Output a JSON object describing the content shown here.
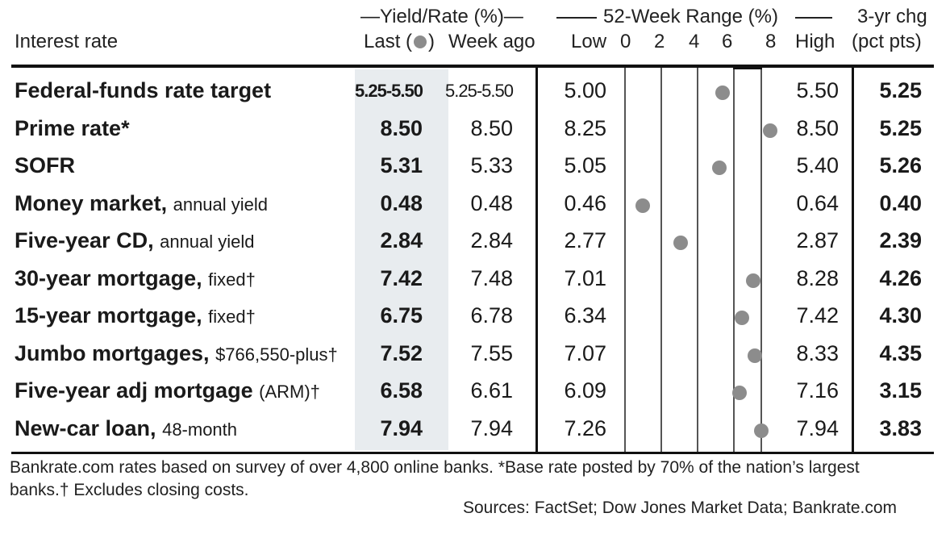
{
  "colors": {
    "dot": "#8c8c8c",
    "last_column_shade": "#e8ecef",
    "rule": "#111111"
  },
  "header": {
    "interest_rate": "Interest rate",
    "yield_group": "—Yield/Rate (%)—",
    "last": "Last",
    "paren_open": "(",
    "paren_close": ")",
    "week_ago": "Week ago",
    "range_group": "52-Week Range (%)",
    "low": "Low",
    "high": "High",
    "chg_line1": "3-yr chg",
    "chg_line2": "(pct pts)",
    "ticks": [
      "0",
      "2",
      "4",
      "6",
      "8"
    ]
  },
  "rows": [
    {
      "name": "Federal-funds rate target",
      "qual": "",
      "last": "5.25-5.50",
      "week_ago": "5.25-5.50",
      "low": "5.00",
      "high": "5.50",
      "chg": "5.25"
    },
    {
      "name": "Prime rate*",
      "qual": "",
      "last": "8.50",
      "week_ago": "8.50",
      "low": "8.25",
      "high": "8.50",
      "chg": "5.25"
    },
    {
      "name": "SOFR",
      "qual": "",
      "last": "5.31",
      "week_ago": "5.33",
      "low": "5.05",
      "high": "5.40",
      "chg": "5.26"
    },
    {
      "name": "Money market,",
      "qual": "annual yield",
      "last": "0.48",
      "week_ago": "0.48",
      "low": "0.46",
      "high": "0.64",
      "chg": "0.40"
    },
    {
      "name": "Five-year CD,",
      "qual": "annual yield",
      "last": "2.84",
      "week_ago": "2.84",
      "low": "2.77",
      "high": "2.87",
      "chg": "2.39"
    },
    {
      "name": "30-year mortgage,",
      "qual": "fixed†",
      "last": "7.42",
      "week_ago": "7.48",
      "low": "7.01",
      "high": "8.28",
      "chg": "4.26"
    },
    {
      "name": "15-year mortgage,",
      "qual": "fixed†",
      "last": "6.75",
      "week_ago": "6.78",
      "low": "6.34",
      "high": "7.42",
      "chg": "4.30"
    },
    {
      "name": "Jumbo mortgages,",
      "qual": "$766,550-plus†",
      "last": "7.52",
      "week_ago": "7.55",
      "low": "7.07",
      "high": "8.33",
      "chg": "4.35"
    },
    {
      "name": "Five-year adj mortgage",
      "qual": "(ARM)†",
      "last": "6.58",
      "week_ago": "6.61",
      "low": "6.09",
      "high": "7.16",
      "chg": "3.15"
    },
    {
      "name": "New-car loan,",
      "qual": "48-month",
      "last": "7.94",
      "week_ago": "7.94",
      "low": "7.26",
      "high": "7.94",
      "chg": "3.83"
    }
  ],
  "chart_data": {
    "type": "table",
    "columns": [
      "Interest rate",
      "Last",
      "Week ago",
      "Low",
      "High",
      "3-yr chg (pct pts)"
    ],
    "range_axis": {
      "ticks": [
        0,
        2,
        4,
        6,
        8
      ],
      "range": [
        0,
        8
      ]
    },
    "dots": [
      {
        "row": "Federal-funds rate target",
        "value": 5.5
      },
      {
        "row": "Prime rate*",
        "value": 8.5
      },
      {
        "row": "SOFR",
        "value": 5.31
      },
      {
        "row": "Money market,",
        "value": 0.48
      },
      {
        "row": "Five-year CD,",
        "value": 2.84
      },
      {
        "row": "30-year mortgage,",
        "value": 7.42
      },
      {
        "row": "15-year mortgage,",
        "value": 6.75
      },
      {
        "row": "Jumbo mortgages,",
        "value": 7.52
      },
      {
        "row": "Five-year adj mortgage",
        "value": 6.58
      },
      {
        "row": "New-car loan,",
        "value": 7.94
      }
    ]
  },
  "footer": {
    "note_line1": "Bankrate.com rates based on survey of over 4,800 online banks. *Base rate posted by 70% of the nation’s largest",
    "note_line2": "banks.† Excludes closing costs.",
    "sources": "Sources: FactSet; Dow Jones Market Data; Bankrate.com"
  }
}
